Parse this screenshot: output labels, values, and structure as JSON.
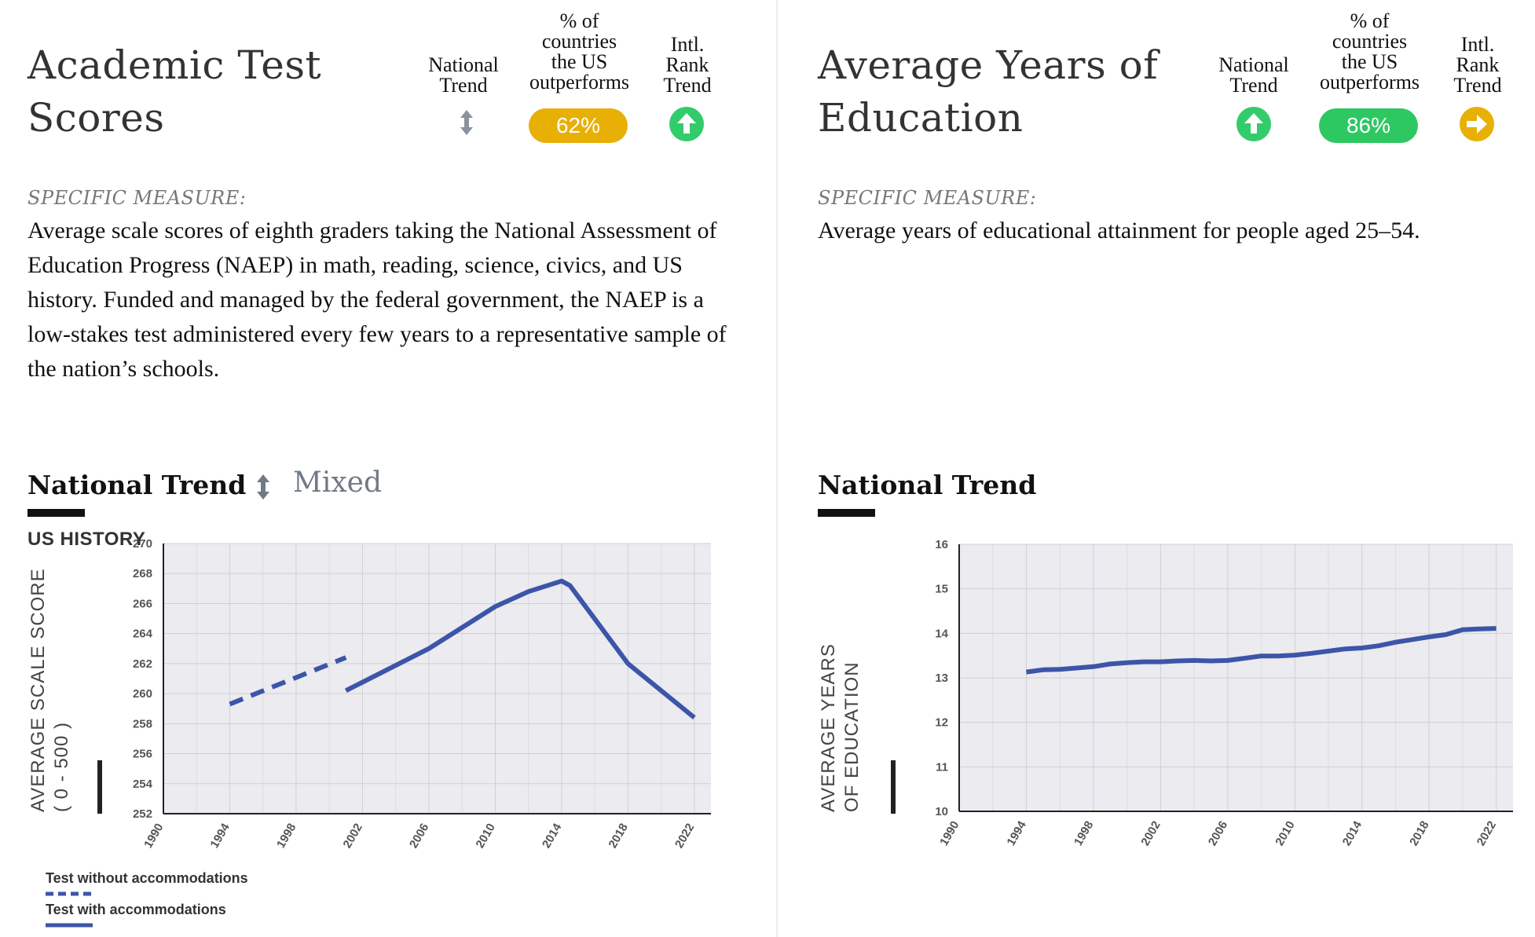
{
  "panels": [
    {
      "title": "Academic Test Scores",
      "indicators": {
        "national_trend_header": [
          "National",
          "Trend"
        ],
        "outperforms_header": [
          "% of",
          "countries",
          "the US",
          "outperforms"
        ],
        "rank_trend_header": [
          "Intl.",
          "Rank",
          "Trend"
        ],
        "national_trend_icon": "up-down-arrow-icon",
        "outperforms_value": "62%",
        "outperforms_color": "#e8b005",
        "rank_trend_icon": "arrow-up-circle-icon",
        "rank_trend_color": "#33cc6b"
      },
      "specific_measure_label": "SPECIFIC MEASURE:",
      "specific_measure_text": "Average scale scores of eighth graders taking the National Assessment of Education Progress (NAEP) in math, reading, science, civics, and US history. Funded and managed by the federal government, the NAEP is a low-stakes test administered every few years to a representative sample of the nation’s schools.",
      "national_trend_title": "National Trend",
      "trend_status": "Mixed",
      "trend_status_icon": "up-down-arrow-icon"
    },
    {
      "title": "Average Years of Education",
      "indicators": {
        "national_trend_header": [
          "National",
          "Trend"
        ],
        "outperforms_header": [
          "% of",
          "countries",
          "the US",
          "outperforms"
        ],
        "rank_trend_header": [
          "Intl.",
          "Rank",
          "Trend"
        ],
        "national_trend_icon": "arrow-up-circle-icon",
        "national_trend_color": "#33cc6b",
        "outperforms_value": "86%",
        "outperforms_color": "#2ec862",
        "rank_trend_icon": "arrow-right-circle-icon",
        "rank_trend_color": "#e8b005"
      },
      "specific_measure_label": "SPECIFIC MEASURE:",
      "specific_measure_text": "Average years of educational attainment for people aged 25–54.",
      "national_trend_title": "National Trend"
    }
  ],
  "chart_data": [
    {
      "type": "line",
      "subject_label": "US HISTORY",
      "ylabel": [
        "AVERAGE  SCALE SCORE",
        "( 0 - 500 )"
      ],
      "xlabel": "",
      "xlim": [
        1990,
        2023
      ],
      "ylim": [
        252,
        270
      ],
      "x_ticks": [
        1990,
        1994,
        1998,
        2002,
        2006,
        2010,
        2014,
        2018,
        2022
      ],
      "y_ticks": [
        252,
        254,
        256,
        258,
        260,
        262,
        264,
        266,
        268,
        270
      ],
      "grid": true,
      "line_color": "#3d55a8",
      "series": [
        {
          "name": "Test without accommodations",
          "style": "dashed",
          "x": [
            1994,
            2001
          ],
          "y": [
            259.3,
            262.4
          ]
        },
        {
          "name": "Test with accommodations",
          "style": "solid",
          "x": [
            2001,
            2006,
            2010,
            2012,
            2014,
            2014.5,
            2018,
            2022
          ],
          "y": [
            260.2,
            263.0,
            265.8,
            266.8,
            267.5,
            267.2,
            262.0,
            258.4
          ]
        }
      ],
      "legend": [
        {
          "label": "Test without accommodations",
          "style": "dashed"
        },
        {
          "label": "Test with accommodations",
          "style": "solid"
        }
      ],
      "legend_position": "bottom-left"
    },
    {
      "type": "line",
      "ylabel": [
        "AVERAGE YEARS",
        "OF EDUCATION"
      ],
      "xlabel": "",
      "xlim": [
        1990,
        2023
      ],
      "ylim": [
        10,
        16
      ],
      "x_ticks": [
        1990,
        1994,
        1998,
        2002,
        2006,
        2010,
        2014,
        2018,
        2022
      ],
      "y_ticks": [
        10,
        11,
        12,
        13,
        14,
        15,
        16
      ],
      "grid": true,
      "line_color": "#3d55a8",
      "series": [
        {
          "style": "solid",
          "x": [
            1994,
            1995,
            1996,
            1997,
            1998,
            1999,
            2000,
            2001,
            2002,
            2003,
            2004,
            2005,
            2006,
            2007,
            2008,
            2009,
            2010,
            2011,
            2012,
            2013,
            2014,
            2015,
            2016,
            2017,
            2018,
            2019,
            2020,
            2021,
            2022
          ],
          "y": [
            13.13,
            13.18,
            13.19,
            13.22,
            13.25,
            13.31,
            13.34,
            13.36,
            13.36,
            13.38,
            13.39,
            13.38,
            13.39,
            13.44,
            13.49,
            13.49,
            13.51,
            13.55,
            13.6,
            13.65,
            13.67,
            13.72,
            13.8,
            13.86,
            13.92,
            13.97,
            14.08,
            14.1,
            14.11
          ]
        }
      ]
    }
  ]
}
